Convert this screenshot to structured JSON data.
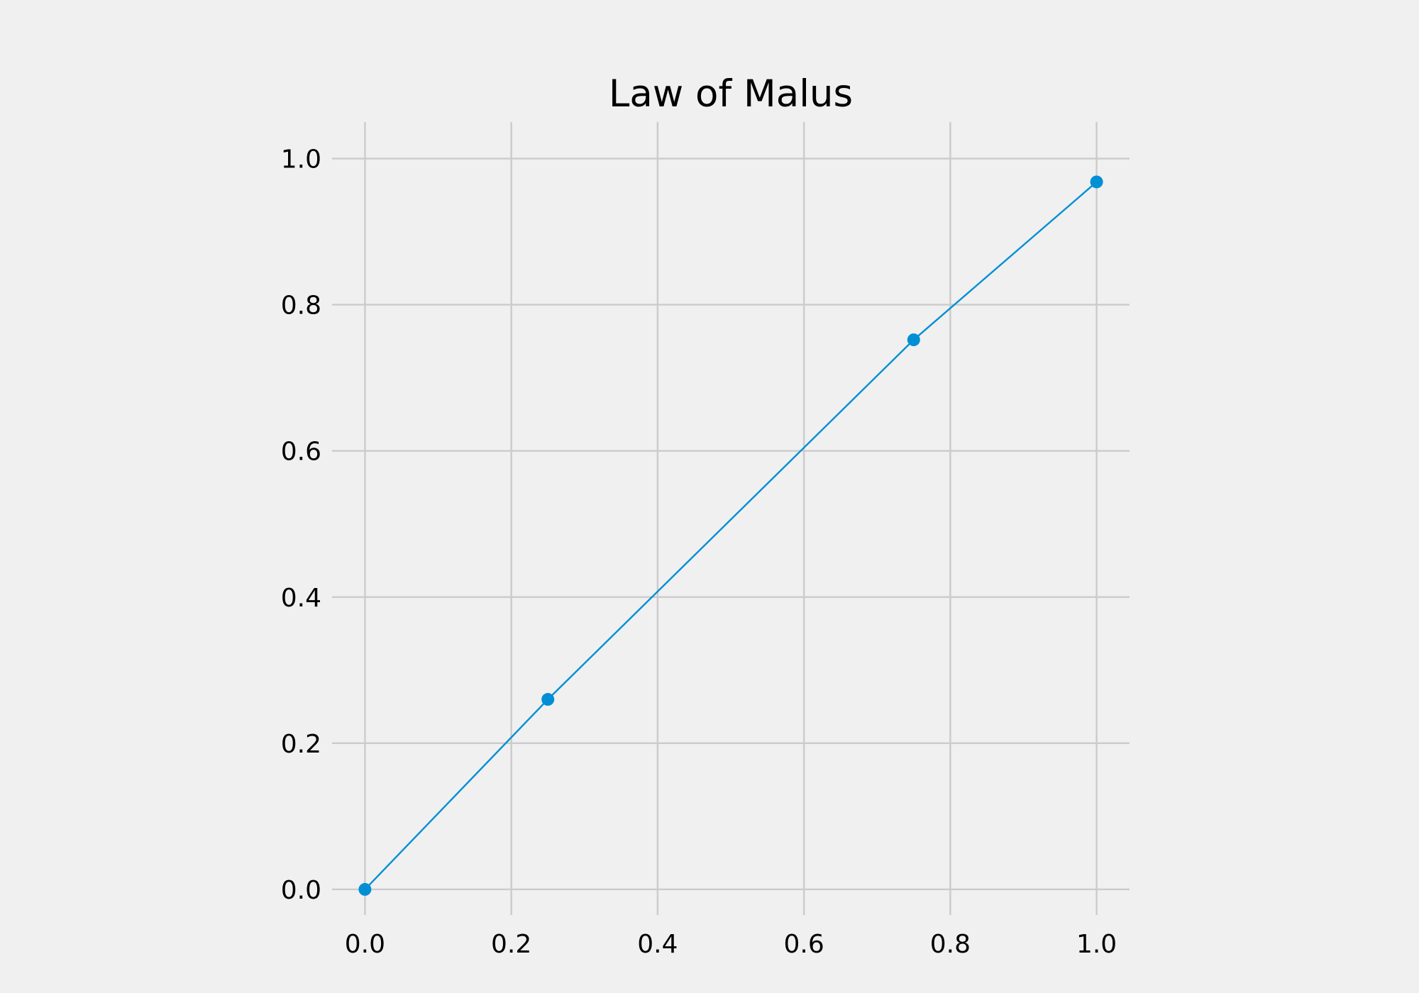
{
  "chart_data": {
    "type": "line",
    "title": "Law of Malus",
    "xlabel": "",
    "ylabel": "",
    "xlim": [
      -0.045,
      1.045
    ],
    "ylim": [
      -0.035,
      1.05
    ],
    "xticks": [
      0.0,
      0.2,
      0.4,
      0.6,
      0.8,
      1.0
    ],
    "yticks": [
      0.0,
      0.2,
      0.4,
      0.6,
      0.8,
      1.0
    ],
    "xtick_labels": [
      "0.0",
      "0.2",
      "0.4",
      "0.6",
      "0.8",
      "1.0"
    ],
    "ytick_labels": [
      "0.0",
      "0.2",
      "0.4",
      "0.6",
      "0.8",
      "1.0"
    ],
    "grid": true,
    "legend": false,
    "series": [
      {
        "x": [
          0.0,
          0.25,
          0.75,
          1.0
        ],
        "y": [
          0.0,
          0.26,
          0.752,
          0.968
        ],
        "color": "#008fd5",
        "marker": "circle"
      }
    ],
    "background_color": "#f0f0f0",
    "grid_color": "#cbcbcb"
  }
}
